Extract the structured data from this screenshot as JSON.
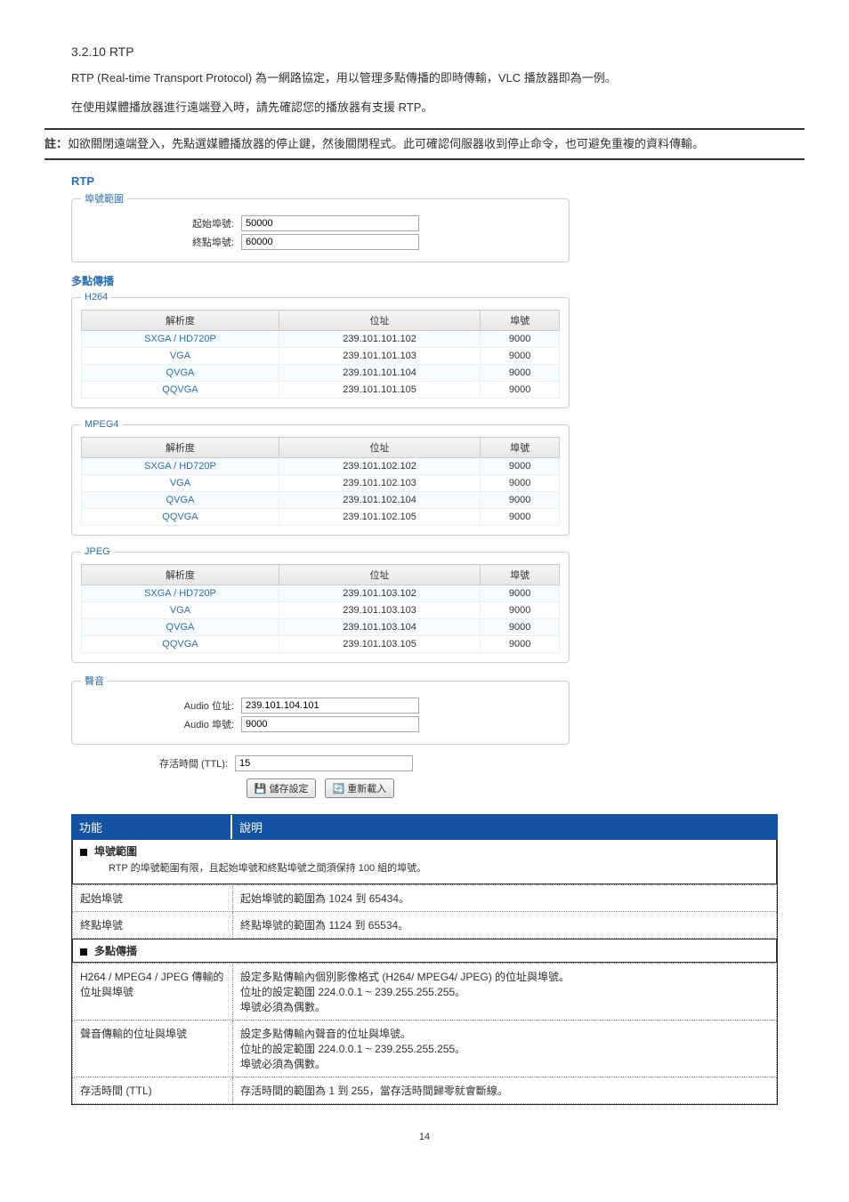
{
  "section": {
    "title": "3.2.10 RTP"
  },
  "para1": "RTP (Real-time Transport Protocol)  為一網路協定，用以管理多點傳播的即時傳輸，VLC 播放器即為一例。",
  "para2": "在使用媒體播放器進行遠端登入時，請先確認您的播放器有支援 RTP。",
  "note": {
    "prefix": "註：",
    "body": "如欲關閉遠端登入，先點選媒體播放器的停止鍵，然後關閉程式。此可確認伺服器收到停止命令，也可避免重複的資料傳輸。"
  },
  "rtp": {
    "heading": "RTP",
    "portRange": {
      "legend": "埠號範圍",
      "start_label": "起始埠號:",
      "start_value": "50000",
      "end_label": "終點埠號:",
      "end_value": "60000"
    },
    "multicast_label": "多點傳播",
    "groups": [
      {
        "legend": "H264",
        "cols": [
          "解析度",
          "位址",
          "埠號"
        ],
        "rows": [
          [
            "SXGA / HD720P",
            "239.101.101.102",
            "9000"
          ],
          [
            "VGA",
            "239.101.101.103",
            "9000"
          ],
          [
            "QVGA",
            "239.101.101.104",
            "9000"
          ],
          [
            "QQVGA",
            "239.101.101.105",
            "9000"
          ]
        ]
      },
      {
        "legend": "MPEG4",
        "cols": [
          "解析度",
          "位址",
          "埠號"
        ],
        "rows": [
          [
            "SXGA / HD720P",
            "239.101.102.102",
            "9000"
          ],
          [
            "VGA",
            "239.101.102.103",
            "9000"
          ],
          [
            "QVGA",
            "239.101.102.104",
            "9000"
          ],
          [
            "QQVGA",
            "239.101.102.105",
            "9000"
          ]
        ]
      },
      {
        "legend": "JPEG",
        "cols": [
          "解析度",
          "位址",
          "埠號"
        ],
        "rows": [
          [
            "SXGA / HD720P",
            "239.101.103.102",
            "9000"
          ],
          [
            "VGA",
            "239.101.103.103",
            "9000"
          ],
          [
            "QVGA",
            "239.101.103.104",
            "9000"
          ],
          [
            "QQVGA",
            "239.101.103.105",
            "9000"
          ]
        ]
      }
    ],
    "audio": {
      "legend": "聲音",
      "addr_label": "Audio 位址:",
      "addr_value": "239.101.104.101",
      "port_label": "Audio 埠號:",
      "port_value": "9000"
    },
    "ttl": {
      "label": "存活時間 (TTL):",
      "value": "15"
    },
    "buttons": {
      "save": "儲存設定",
      "reload": "重新載入"
    }
  },
  "desc": {
    "header": {
      "c1": "功能",
      "c2": "說明"
    },
    "s1": {
      "title": "埠號範圍",
      "note": "RTP 的埠號範圍有限，且起始埠號和終點埠號之間須保持 100 組的埠號。",
      "rows": [
        [
          "起始埠號",
          "起始埠號的範圍為 1024 到 65434。"
        ],
        [
          "終點埠號",
          "終點埠號的範圍為 1124 到 65534。"
        ]
      ]
    },
    "s2": {
      "title": "多點傳播",
      "rows": [
        [
          "H264 / MPEG4 / JPEG 傳輸的位址與埠號",
          "設定多點傳輸內個別影像格式 (H264/ MPEG4/ JPEG) 的位址與埠號。\n位址的設定範圍 224.0.0.1 ~ 239.255.255.255。\n埠號必須為偶數。"
        ],
        [
          "聲音傳輸的位址與埠號",
          "設定多點傳輸內聲音的位址與埠號。\n位址的設定範圍 224.0.0.1 ~ 239.255.255.255。\n埠號必須為偶數。"
        ],
        [
          "存活時間 (TTL)",
          "存活時間的範圍為 1 到 255，當存活時間歸零就會斷線。"
        ]
      ]
    }
  },
  "page_number": "14"
}
